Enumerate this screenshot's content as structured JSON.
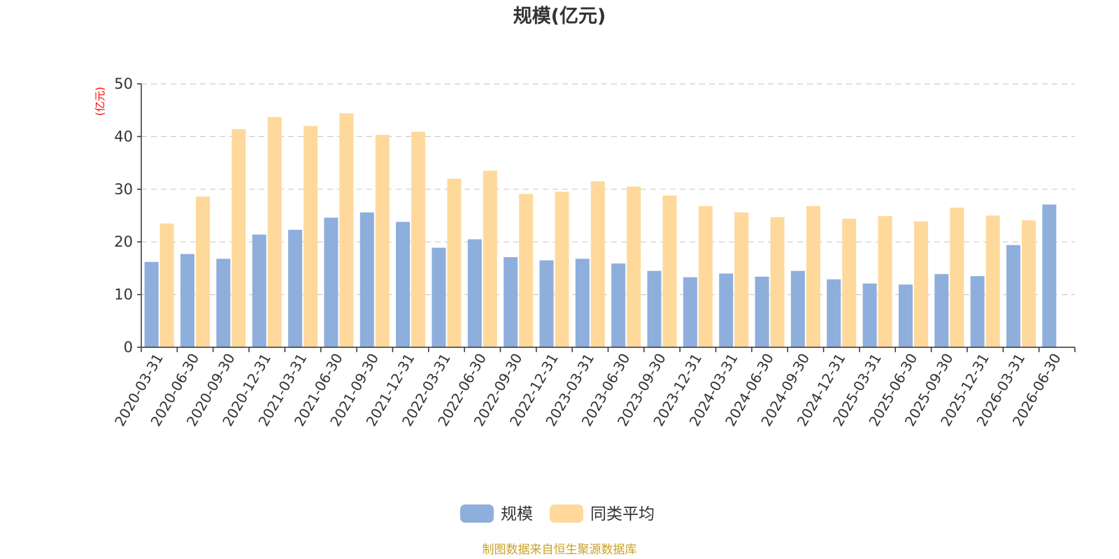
{
  "chart_data": {
    "type": "bar",
    "title": "规模(亿元)",
    "ylabel": "(亿元)",
    "ylim": [
      0,
      50
    ],
    "yticks": [
      0,
      10,
      20,
      30,
      40,
      50
    ],
    "grid": true,
    "legend_position": "bottom-center",
    "categories": [
      "2020-03-31",
      "2020-06-30",
      "2020-09-30",
      "2020-12-31",
      "2021-03-31",
      "2021-06-30",
      "2021-09-30",
      "2021-12-31",
      "2022-03-31",
      "2022-06-30",
      "2022-09-30",
      "2022-12-31",
      "2023-03-31",
      "2023-06-30",
      "2023-09-30",
      "2023-12-31",
      "2024-03-31",
      "2024-06-30",
      "2024-09-30",
      "2024-12-31",
      "2025-03-31",
      "2025-06-30",
      "2025-09-30",
      "2025-12-31",
      "2026-03-31",
      "2026-06-30"
    ],
    "series": [
      {
        "name": "规模",
        "color": "#8EAEDC",
        "values": [
          16.2,
          17.7,
          16.8,
          21.4,
          22.3,
          24.6,
          25.6,
          23.8,
          18.9,
          20.5,
          17.1,
          16.5,
          16.8,
          15.9,
          14.5,
          13.3,
          14.0,
          13.4,
          14.5,
          12.9,
          12.1,
          11.9,
          13.9,
          13.5,
          19.4,
          27.1
        ]
      },
      {
        "name": "同类平均",
        "color": "#FED99B",
        "values": [
          23.5,
          28.6,
          41.4,
          43.7,
          42.0,
          44.4,
          40.3,
          40.9,
          32.0,
          33.5,
          29.1,
          29.5,
          31.5,
          30.5,
          28.8,
          26.8,
          25.6,
          24.7,
          26.8,
          24.4,
          24.9,
          23.9,
          26.5,
          25.0,
          24.1,
          null
        ]
      }
    ]
  },
  "colors": {
    "axis": "#333333",
    "grid": "#cccccc",
    "unit_label": "#ff0000",
    "source_text": "#c9a227"
  },
  "source_note": "制图数据来自恒生聚源数据库"
}
